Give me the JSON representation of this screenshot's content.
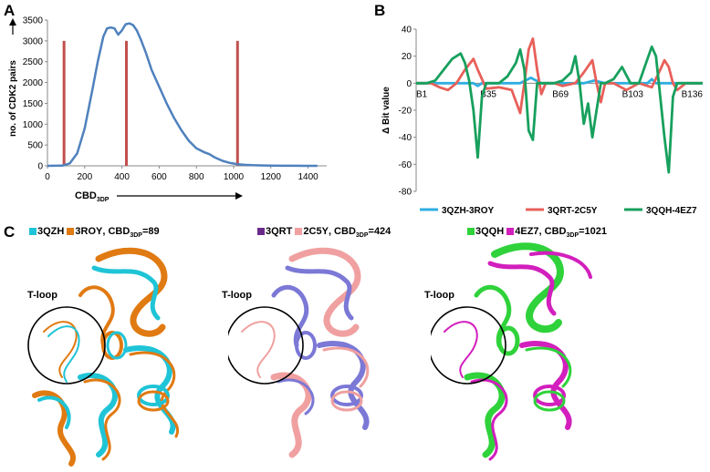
{
  "panels": {
    "a": "A",
    "b": "B",
    "c": "C"
  },
  "chart_data": [
    {
      "type": "line",
      "panel": "A",
      "xlabel_main": "CBD",
      "xlabel_sub": "3DP",
      "ylabel": "no. of CDK2 pairs",
      "xlim": [
        0,
        1500
      ],
      "ylim": [
        0,
        3500
      ],
      "x_ticks": [
        "0",
        "200",
        "400",
        "600",
        "800",
        "1000",
        "1200",
        "1400"
      ],
      "x_tick_values": [
        0,
        200,
        400,
        600,
        800,
        1000,
        1200,
        1400
      ],
      "y_ticks": [
        "0",
        "500",
        "1000",
        "1500",
        "2000",
        "2500",
        "3000",
        "3500"
      ],
      "y_tick_values": [
        0,
        500,
        1000,
        1500,
        2000,
        2500,
        3000,
        3500
      ],
      "series": [
        {
          "color": "#4f81bd",
          "x": [
            0,
            80,
            120,
            160,
            200,
            240,
            270,
            300,
            320,
            340,
            360,
            380,
            400,
            420,
            440,
            460,
            480,
            500,
            530,
            560,
            600,
            640,
            680,
            720,
            760,
            800,
            840,
            870,
            900,
            940,
            980,
            1020,
            1060,
            1100,
            1140,
            1200,
            1260,
            1320,
            1380,
            1450
          ],
          "y": [
            0,
            5,
            60,
            300,
            900,
            1800,
            2500,
            3100,
            3300,
            3320,
            3300,
            3150,
            3250,
            3400,
            3420,
            3380,
            3250,
            3050,
            2700,
            2300,
            1900,
            1500,
            1150,
            850,
            600,
            420,
            330,
            280,
            200,
            120,
            70,
            40,
            25,
            15,
            10,
            5,
            3,
            2,
            1,
            0
          ]
        }
      ],
      "markers": {
        "color": "#c0504d",
        "x": [
          89,
          424,
          1021
        ],
        "height": 3000
      }
    },
    {
      "type": "line",
      "panel": "B",
      "ylabel": "Δ Bit value",
      "ylim": [
        -80,
        40
      ],
      "y_ticks": [
        "40",
        "20",
        "0",
        "-20",
        "-40",
        "-60",
        "-80"
      ],
      "y_tick_values": [
        40,
        20,
        0,
        -20,
        -40,
        -60,
        -80
      ],
      "x_ticks": [
        "B1",
        "B35",
        "B69",
        "B103",
        "B136"
      ],
      "x_tick_values": [
        1,
        35,
        69,
        103,
        136
      ],
      "xlim": [
        1,
        136
      ],
      "legend_position": "bottom",
      "series": [
        {
          "name": "3QZH-3ROY",
          "color": "#2eaee0",
          "x": [
            1,
            10,
            20,
            28,
            30,
            32,
            40,
            50,
            55,
            60,
            70,
            80,
            85,
            90,
            100,
            110,
            112,
            114,
            120,
            130,
            136
          ],
          "y": [
            0,
            0,
            0,
            0,
            -2,
            0,
            0,
            0,
            4,
            0,
            0,
            0,
            2,
            0,
            0,
            0,
            3,
            0,
            0,
            0,
            0
          ]
        },
        {
          "name": "3QRT-2C5Y",
          "color": "#e8605a",
          "x": [
            1,
            8,
            12,
            16,
            20,
            24,
            28,
            30,
            34,
            40,
            46,
            50,
            52,
            54,
            56,
            58,
            60,
            62,
            66,
            70,
            76,
            80,
            84,
            86,
            88,
            90,
            94,
            100,
            106,
            112,
            116,
            118,
            120,
            122,
            124,
            128,
            136
          ],
          "y": [
            0,
            0,
            -3,
            -5,
            0,
            10,
            18,
            10,
            -4,
            -3,
            -5,
            -22,
            0,
            25,
            33,
            10,
            -8,
            0,
            0,
            -2,
            0,
            8,
            17,
            0,
            -14,
            0,
            0,
            -5,
            0,
            -3,
            10,
            17,
            12,
            0,
            -5,
            0,
            0
          ]
        },
        {
          "name": "3QQH-4EZ7",
          "color": "#17a05d",
          "x": [
            1,
            6,
            10,
            14,
            18,
            22,
            24,
            26,
            28,
            30,
            32,
            34,
            36,
            40,
            44,
            48,
            50,
            52,
            54,
            56,
            58,
            62,
            66,
            70,
            74,
            76,
            78,
            80,
            82,
            84,
            86,
            88,
            90,
            94,
            98,
            102,
            106,
            110,
            112,
            114,
            116,
            118,
            120,
            122,
            124,
            128,
            132,
            136
          ],
          "y": [
            0,
            0,
            2,
            10,
            18,
            22,
            15,
            2,
            -20,
            -55,
            -10,
            0,
            0,
            0,
            5,
            15,
            25,
            10,
            -35,
            -42,
            0,
            0,
            0,
            2,
            8,
            20,
            0,
            -30,
            -15,
            -40,
            -20,
            0,
            0,
            3,
            12,
            0,
            0,
            18,
            27,
            20,
            -10,
            -40,
            -66,
            -10,
            0,
            0,
            0,
            0
          ]
        }
      ]
    }
  ],
  "panel_c": {
    "pairs": [
      {
        "label_a": "3QZH",
        "color_a": "#1fc4d6",
        "label_b": "3ROY",
        "color_b": "#e07a12",
        "cbd_main": ", CBD",
        "cbd_sub": "3DP",
        "cbd_value": "=89",
        "tloop": "T-loop"
      },
      {
        "label_a": "3QRT",
        "color_a": "#6a2a8c",
        "label_b": "2C5Y",
        "color_b": "#f0a0a0",
        "cbd_main": ", CBD",
        "cbd_sub": "3DP",
        "cbd_value": "=424",
        "tloop": "T-loop"
      },
      {
        "label_a": "3QQH",
        "color_a": "#2fd23a",
        "label_b": "4EZ7",
        "color_b": "#d21fbd",
        "cbd_main": ", CBD",
        "cbd_sub": "3DP",
        "cbd_value": "=1021",
        "tloop": "T-loop"
      }
    ]
  }
}
